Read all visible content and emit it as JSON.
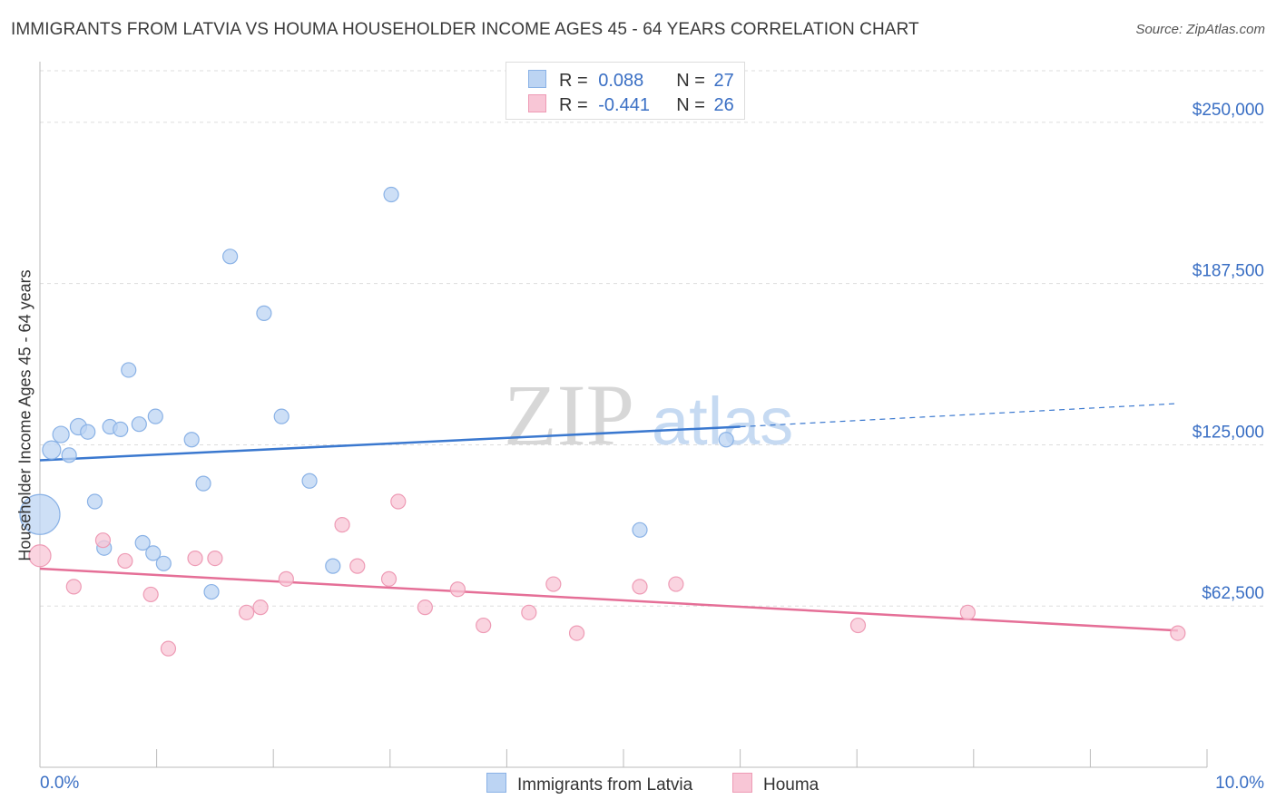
{
  "header": {
    "title": "IMMIGRANTS FROM LATVIA VS HOUMA HOUSEHOLDER INCOME AGES 45 - 64 YEARS CORRELATION CHART",
    "source": "Source: ZipAtlas.com"
  },
  "watermark": {
    "zip": "ZIP",
    "atlas": "atlas"
  },
  "legend_top": {
    "rows": [
      {
        "r_label": "R =",
        "r_value": "0.088",
        "n_label": "N =",
        "n_value": "27"
      },
      {
        "r_label": "R =",
        "r_value": "-0.441",
        "n_label": "N =",
        "n_value": "26"
      }
    ]
  },
  "legend_bottom": [
    "Immigrants from Latvia",
    "Houma"
  ],
  "colors": {
    "blue_fill": "#bcd4f3",
    "blue_stroke": "#8ab2e6",
    "blue_line": "#3a78cf",
    "pink_fill": "#f8c6d6",
    "pink_stroke": "#ee9bb5",
    "pink_line": "#e56f97",
    "tick_text": "#3a6fc4",
    "grid": "#dddddd"
  },
  "chart_data": {
    "type": "scatter",
    "xlabel": "",
    "ylabel": "Householder Income Ages 45 - 64 years",
    "xlim": [
      0,
      10
    ],
    "ylim": [
      0,
      270000
    ],
    "x_tick_labels": [
      "0.0%",
      "10.0%"
    ],
    "y_ticks": [
      62500,
      125000,
      187500,
      250000
    ],
    "y_tick_labels": [
      "$62,500",
      "$125,000",
      "$187,500",
      "$250,000"
    ],
    "grid": true,
    "legend_position": "top-center",
    "series": [
      {
        "name": "Immigrants from Latvia",
        "points": [
          [
            0.0,
            98000,
            22
          ],
          [
            0.1,
            123000,
            10
          ],
          [
            0.18,
            129000,
            9
          ],
          [
            0.25,
            121000,
            8
          ],
          [
            0.33,
            132000,
            9
          ],
          [
            0.41,
            130000,
            8
          ],
          [
            0.47,
            103000,
            8
          ],
          [
            0.55,
            85000,
            8
          ],
          [
            0.6,
            132000,
            8
          ],
          [
            0.69,
            131000,
            8
          ],
          [
            0.76,
            154000,
            8
          ],
          [
            0.85,
            133000,
            8
          ],
          [
            0.88,
            87000,
            8
          ],
          [
            0.97,
            83000,
            8
          ],
          [
            0.99,
            136000,
            8
          ],
          [
            1.06,
            79000,
            8
          ],
          [
            1.3,
            127000,
            8
          ],
          [
            1.4,
            110000,
            8
          ],
          [
            1.47,
            68000,
            8
          ],
          [
            1.63,
            198000,
            8
          ],
          [
            1.92,
            176000,
            8
          ],
          [
            2.07,
            136000,
            8
          ],
          [
            2.31,
            111000,
            8
          ],
          [
            2.51,
            78000,
            8
          ],
          [
            3.01,
            222000,
            8
          ],
          [
            5.14,
            92000,
            8
          ],
          [
            5.88,
            127000,
            8
          ]
        ]
      },
      {
        "name": "Houma",
        "points": [
          [
            0.0,
            82000,
            12
          ],
          [
            0.29,
            70000,
            8
          ],
          [
            0.54,
            88000,
            8
          ],
          [
            0.73,
            80000,
            8
          ],
          [
            0.95,
            67000,
            8
          ],
          [
            1.1,
            46000,
            8
          ],
          [
            1.33,
            81000,
            8
          ],
          [
            1.5,
            81000,
            8
          ],
          [
            1.77,
            60000,
            8
          ],
          [
            1.89,
            62000,
            8
          ],
          [
            2.11,
            73000,
            8
          ],
          [
            2.59,
            94000,
            8
          ],
          [
            2.72,
            78000,
            8
          ],
          [
            2.99,
            73000,
            8
          ],
          [
            3.07,
            103000,
            8
          ],
          [
            3.3,
            62000,
            8
          ],
          [
            3.58,
            69000,
            8
          ],
          [
            3.8,
            55000,
            8
          ],
          [
            4.19,
            60000,
            8
          ],
          [
            4.4,
            71000,
            8
          ],
          [
            4.6,
            52000,
            8
          ],
          [
            5.14,
            70000,
            8
          ],
          [
            5.45,
            71000,
            8
          ],
          [
            7.01,
            55000,
            8
          ],
          [
            7.95,
            60000,
            8
          ],
          [
            9.75,
            52000,
            8
          ]
        ]
      }
    ],
    "trendlines": [
      {
        "series": "Immigrants from Latvia",
        "x": [
          0,
          6.0
        ],
        "y": [
          119000,
          132000
        ],
        "dashed_to": [
          9.75,
          141000
        ]
      },
      {
        "series": "Houma",
        "x": [
          0,
          9.75
        ],
        "y": [
          77000,
          53000
        ]
      }
    ]
  }
}
